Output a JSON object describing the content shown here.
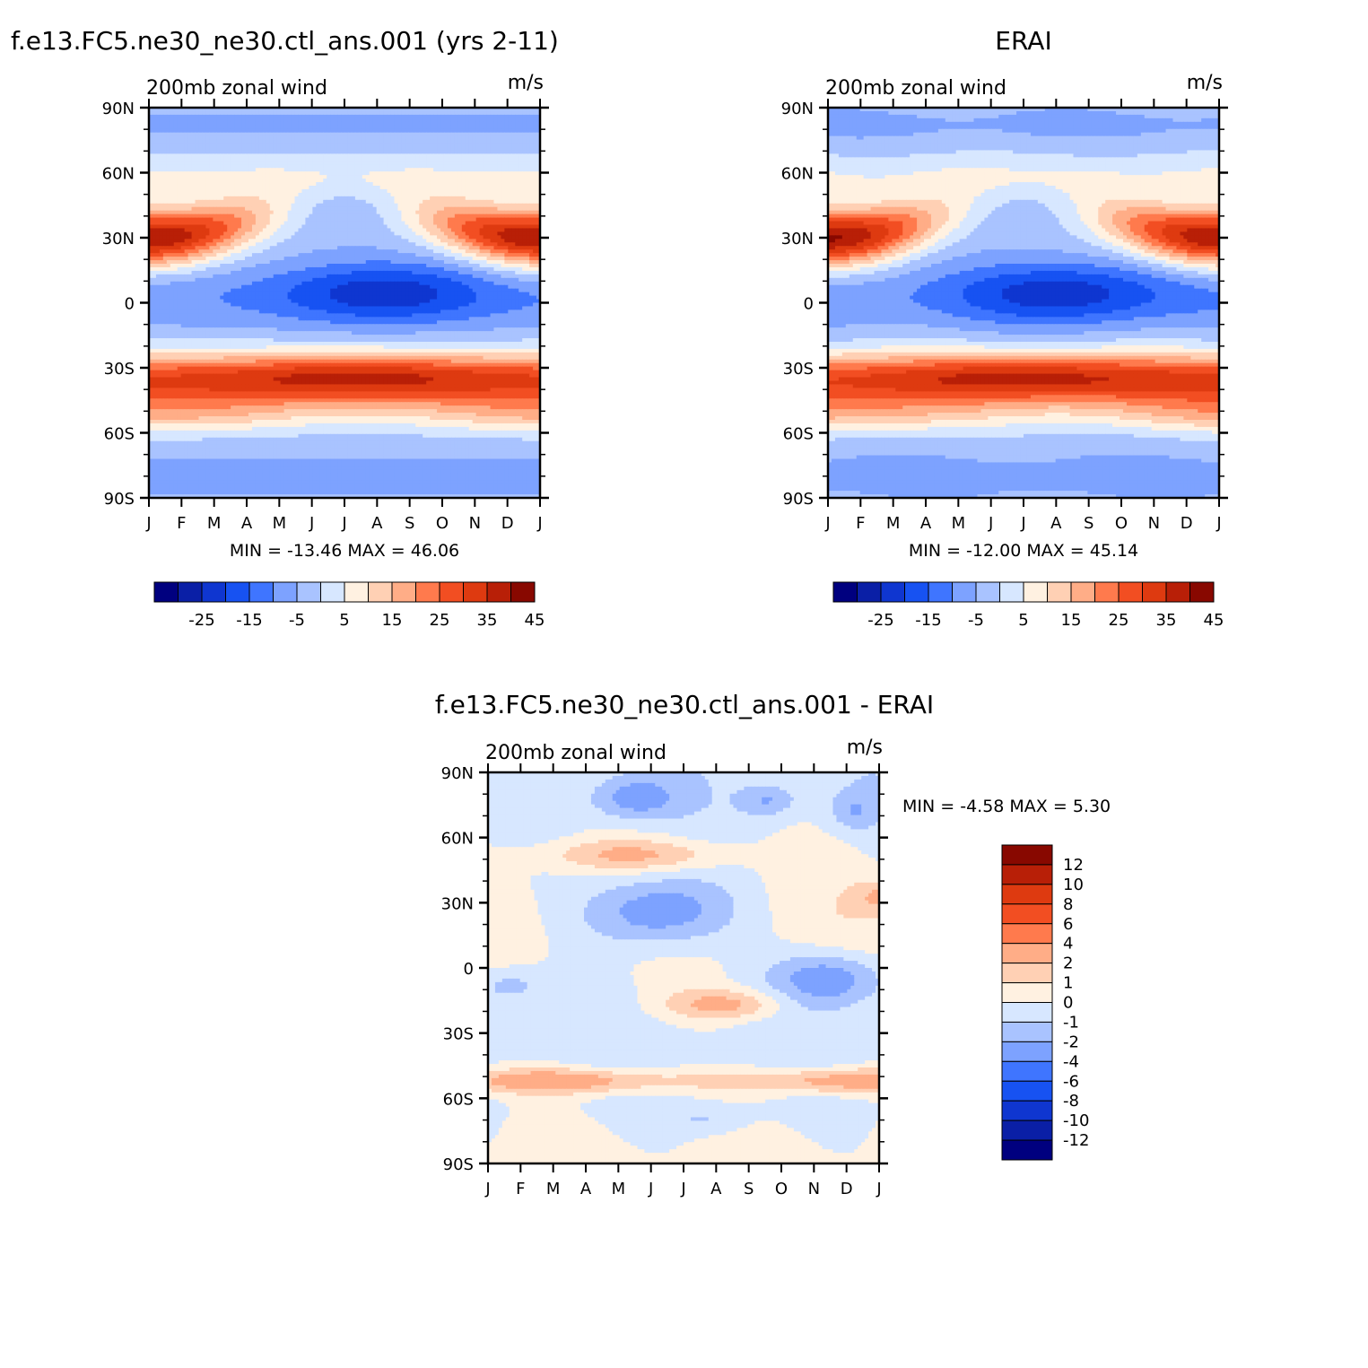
{
  "chart_data": [
    {
      "type": "heatmap",
      "title": "f.e13.FC5.ne30_ne30.ctl_ans.001 (yrs 2-11)",
      "subtitle": "200mb zonal wind",
      "units": "m/s",
      "x_ticks": [
        "J",
        "F",
        "M",
        "A",
        "M",
        "J",
        "J",
        "A",
        "S",
        "O",
        "N",
        "D",
        "J"
      ],
      "y_ticks": [
        "90N",
        "60N",
        "30N",
        "0",
        "30S",
        "60S",
        "90S"
      ],
      "stats": "MIN = -13.46 MAX = 46.06",
      "colorbar": {
        "levels": [
          -30,
          -25,
          -20,
          -15,
          -10,
          -5,
          0,
          5,
          10,
          15,
          20,
          25,
          30,
          35,
          40,
          45,
          50
        ],
        "tick_labels": [
          "-25",
          "-15",
          "-5",
          "5",
          "15",
          "25",
          "35",
          "45"
        ]
      },
      "approx_extremes": {
        "min": -13.46,
        "max": 46.06
      }
    },
    {
      "type": "heatmap",
      "title": "ERAI",
      "subtitle": "200mb zonal wind",
      "units": "m/s",
      "x_ticks": [
        "J",
        "F",
        "M",
        "A",
        "M",
        "J",
        "J",
        "A",
        "S",
        "O",
        "N",
        "D",
        "J"
      ],
      "y_ticks": [
        "90N",
        "60N",
        "30N",
        "0",
        "30S",
        "60S",
        "90S"
      ],
      "stats": "MIN = -12.00 MAX = 45.14",
      "colorbar": {
        "levels": [
          -30,
          -25,
          -20,
          -15,
          -10,
          -5,
          0,
          5,
          10,
          15,
          20,
          25,
          30,
          35,
          40,
          45,
          50
        ],
        "tick_labels": [
          "-25",
          "-15",
          "-5",
          "5",
          "15",
          "25",
          "35",
          "45"
        ]
      },
      "approx_extremes": {
        "min": -12.0,
        "max": 45.14
      }
    },
    {
      "type": "heatmap",
      "title": "f.e13.FC5.ne30_ne30.ctl_ans.001 - ERAI",
      "subtitle": "200mb zonal wind",
      "units": "m/s",
      "x_ticks": [
        "J",
        "F",
        "M",
        "A",
        "M",
        "J",
        "J",
        "A",
        "S",
        "O",
        "N",
        "D",
        "J"
      ],
      "y_ticks": [
        "90N",
        "60N",
        "30N",
        "0",
        "30S",
        "60S",
        "90S"
      ],
      "stats": "MIN = -4.58 MAX = 5.30",
      "colorbar": {
        "levels": [
          -14,
          -12,
          -10,
          -8,
          -6,
          -4,
          -2,
          -1,
          0,
          1,
          2,
          4,
          6,
          8,
          10,
          12,
          14
        ],
        "tick_labels": [
          "12",
          "10",
          "8",
          "6",
          "4",
          "2",
          "1",
          "0",
          "-1",
          "-2",
          "-4",
          "-6",
          "-8",
          "-10",
          "-12"
        ]
      },
      "approx_extremes": {
        "min": -4.58,
        "max": 5.3
      }
    }
  ],
  "colors": [
    "#00007f",
    "#0a1fa6",
    "#0f36d0",
    "#1752f2",
    "#3f75ff",
    "#7da2ff",
    "#a9c3ff",
    "#d7e7ff",
    "#fff1e1",
    "#ffd0b4",
    "#ffad87",
    "#ff7a4d",
    "#f24e22",
    "#de3a10",
    "#b81f07",
    "#880800"
  ]
}
